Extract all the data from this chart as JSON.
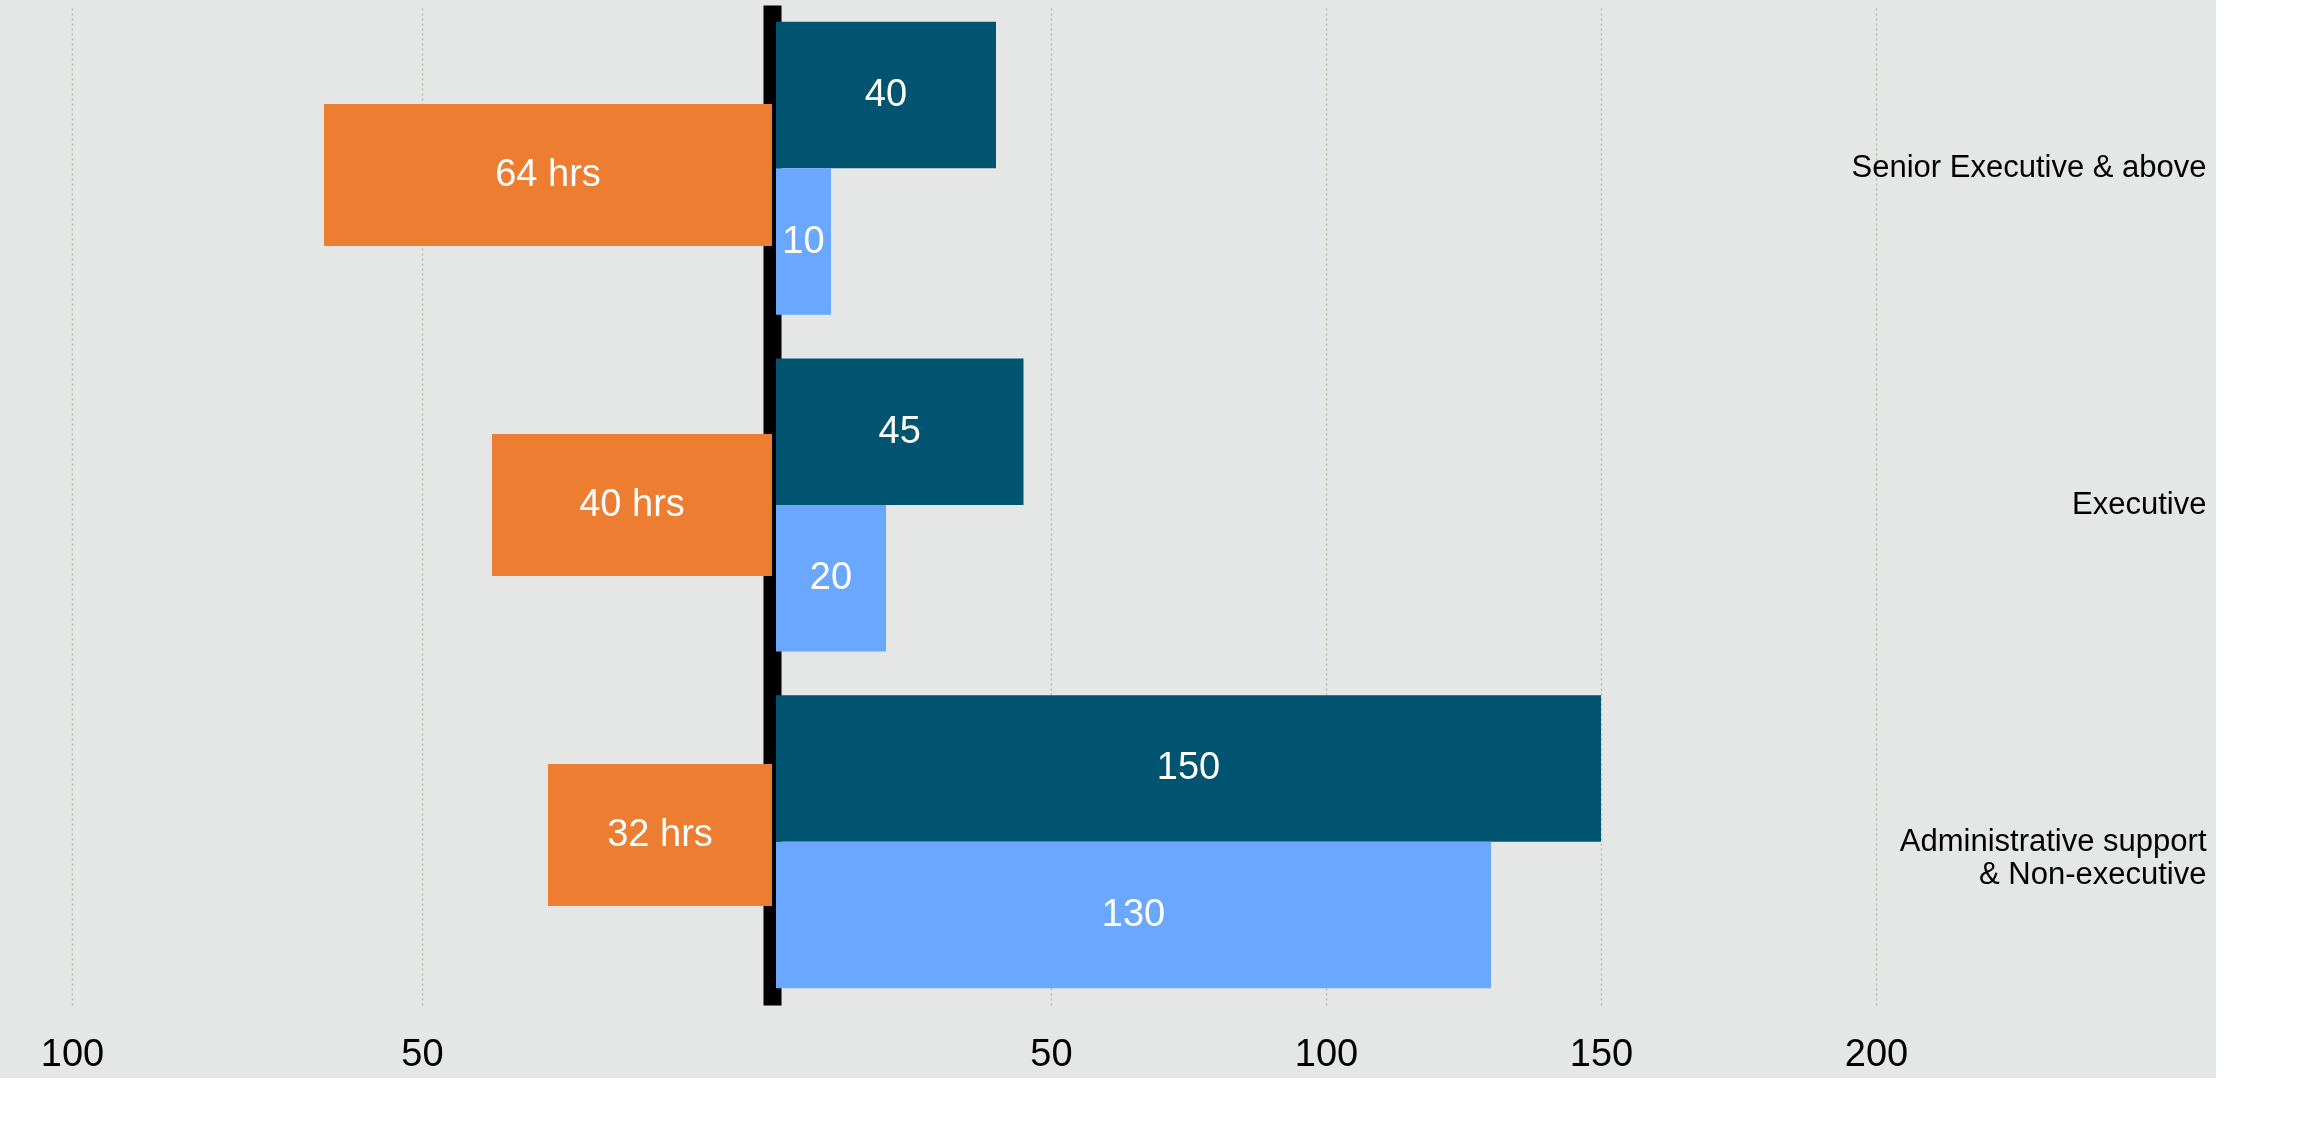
{
  "chart_data": [
    {
      "type": "bar",
      "orientation": "horizontal",
      "categories": [
        null,
        null,
        null
      ],
      "values": [
        64,
        40,
        32
      ],
      "colors": [
        "#ed7d31",
        "#ed7d31",
        "#ed7d31"
      ],
      "value_labels": [
        "64 hrs",
        "40 hrs",
        "32 hrs"
      ],
      "xlim": [
        100,
        0
      ],
      "xticks": [
        100,
        50
      ],
      "grid": "x",
      "tick_labels": "x"
    },
    {
      "type": "bar",
      "orientation": "horizontal",
      "categories": [
        "Senior Executive & above",
        "Executive",
        "Administrative support & Non-executive"
      ],
      "series": [
        {
          "color": "#005470",
          "values": [
            40,
            45,
            150
          ]
        },
        {
          "color": "#6aa8ff",
          "values": [
            10,
            20,
            130
          ]
        }
      ],
      "xlim": [
        0,
        200
      ],
      "xticks": [
        50,
        100,
        150,
        200
      ],
      "grid": "x",
      "data_labels": true
    }
  ]
}
